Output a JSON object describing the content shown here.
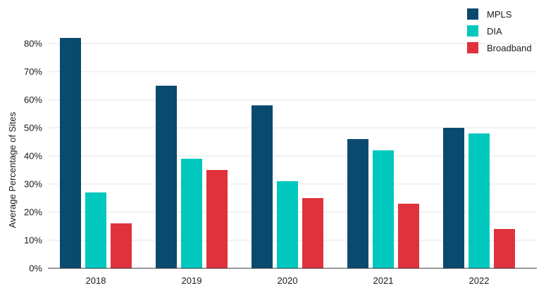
{
  "chart_data": {
    "type": "bar",
    "title": "",
    "xlabel": "",
    "ylabel": "Average Percentage of Sites",
    "categories": [
      "2018",
      "2019",
      "2020",
      "2021",
      "2022"
    ],
    "series": [
      {
        "name": "MPLS",
        "color": "#0b4a6f",
        "values": [
          82,
          65,
          58,
          46,
          50
        ]
      },
      {
        "name": "DIA",
        "color": "#00c8be",
        "values": [
          27,
          39,
          31,
          42,
          48
        ]
      },
      {
        "name": "Broadband",
        "color": "#e0323c",
        "values": [
          16,
          35,
          25,
          23,
          14
        ]
      }
    ],
    "ylim": [
      0,
      80
    ],
    "yticks": [
      0,
      10,
      20,
      30,
      40,
      50,
      60,
      70,
      80
    ],
    "ytick_labels": [
      "0%",
      "10%",
      "20%",
      "30%",
      "40%",
      "50%",
      "60%",
      "70%",
      "80%"
    ],
    "grid": true,
    "legend_position": "top-right"
  }
}
